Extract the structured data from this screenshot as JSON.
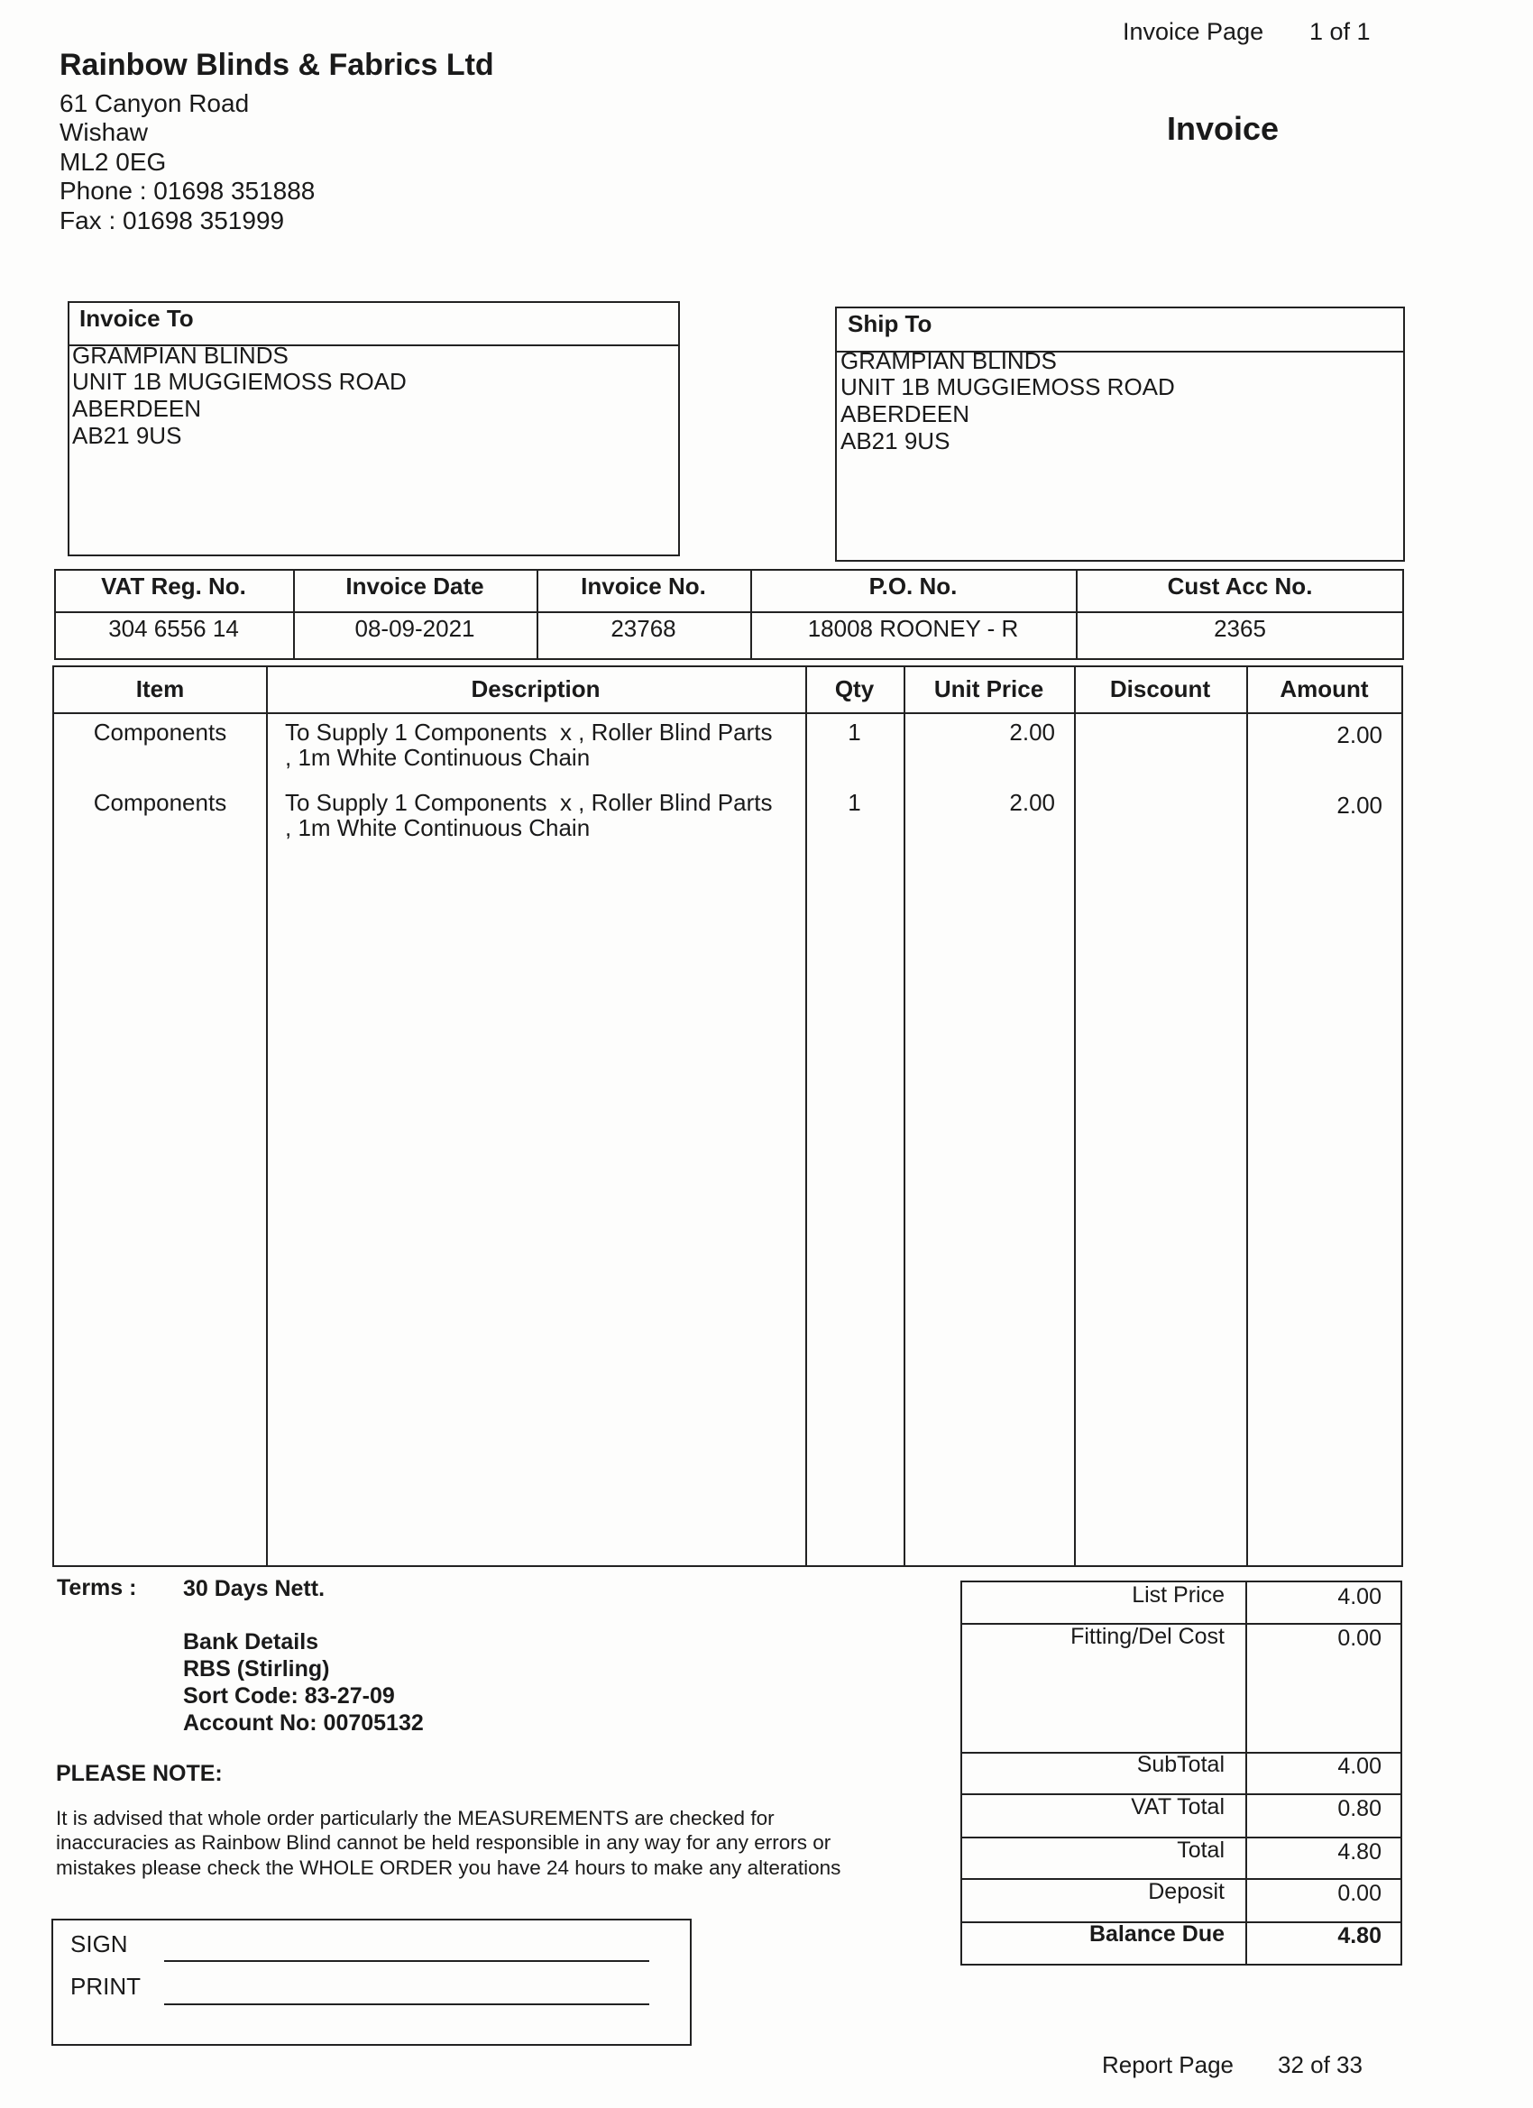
{
  "header": {
    "page_label": "Invoice Page",
    "page_value": "1 of 1",
    "document_title": "Invoice"
  },
  "company": {
    "name": "Rainbow Blinds & Fabrics Ltd",
    "address": [
      "61 Canyon Road",
      "Wishaw",
      "ML2 0EG",
      "Phone : 01698 351888",
      "Fax : 01698 351999"
    ]
  },
  "invoice_to": {
    "label": "Invoice To",
    "lines": [
      "GRAMPIAN BLINDS",
      "UNIT 1B MUGGIEMOSS ROAD",
      "ABERDEEN",
      "AB21 9US"
    ]
  },
  "ship_to": {
    "label": "Ship To",
    "lines": [
      "GRAMPIAN BLINDS",
      "UNIT 1B MUGGIEMOSS ROAD",
      "ABERDEEN",
      "AB21 9US"
    ]
  },
  "info_table": {
    "headers": [
      "VAT Reg. No.",
      "Invoice Date",
      "Invoice No.",
      "P.O. No.",
      "Cust Acc No."
    ],
    "values": [
      "304 6556 14",
      "08-09-2021",
      "23768",
      "18008 ROONEY - R",
      "2365"
    ]
  },
  "items_table": {
    "headers": [
      "Item",
      "Description",
      "Qty",
      "Unit Price",
      "Discount",
      "Amount"
    ],
    "rows": [
      {
        "item": "Components",
        "description": [
          "To Supply 1 Components  x , Roller Blind Parts",
          ", 1m White Continuous Chain"
        ],
        "qty": 1,
        "unit_price": "2.00",
        "amount": "2.00"
      },
      {
        "item": "Components",
        "description": [
          "To Supply 1 Components  x , Roller Blind Parts",
          ", 1m White Continuous Chain"
        ],
        "qty": 1,
        "unit_price": "2.00",
        "amount": "2.00"
      }
    ]
  },
  "terms": {
    "label": "Terms :",
    "value": "30 Days Nett."
  },
  "bank_details": [
    "Bank Details",
    "RBS (Stirling)",
    "Sort Code: 83-27-09",
    "Account No: 00705132"
  ],
  "notice": {
    "title": "PLEASE NOTE:",
    "lines": [
      "It is advised that whole order particularly the MEASUREMENTS are checked for",
      "inaccuracies as Rainbow Blind cannot be held responsible in any way for any errors or",
      "mistakes please check the WHOLE ORDER you have 24 hours to make any alterations"
    ]
  },
  "signature": {
    "sign": "SIGN",
    "print": "PRINT"
  },
  "totals": [
    {
      "label": "List Price",
      "value": "4.00"
    },
    {
      "label": "Fitting/Del Cost",
      "value": "0.00"
    },
    {
      "label": "SubTotal",
      "value": "4.00"
    },
    {
      "label": "VAT Total",
      "value": "0.80"
    },
    {
      "label": "Total",
      "value": "4.80"
    },
    {
      "label": "Deposit",
      "value": "0.00"
    },
    {
      "label": "Balance Due",
      "value": "4.80"
    }
  ],
  "footer": {
    "label": "Report Page",
    "value": "32 of 33"
  }
}
